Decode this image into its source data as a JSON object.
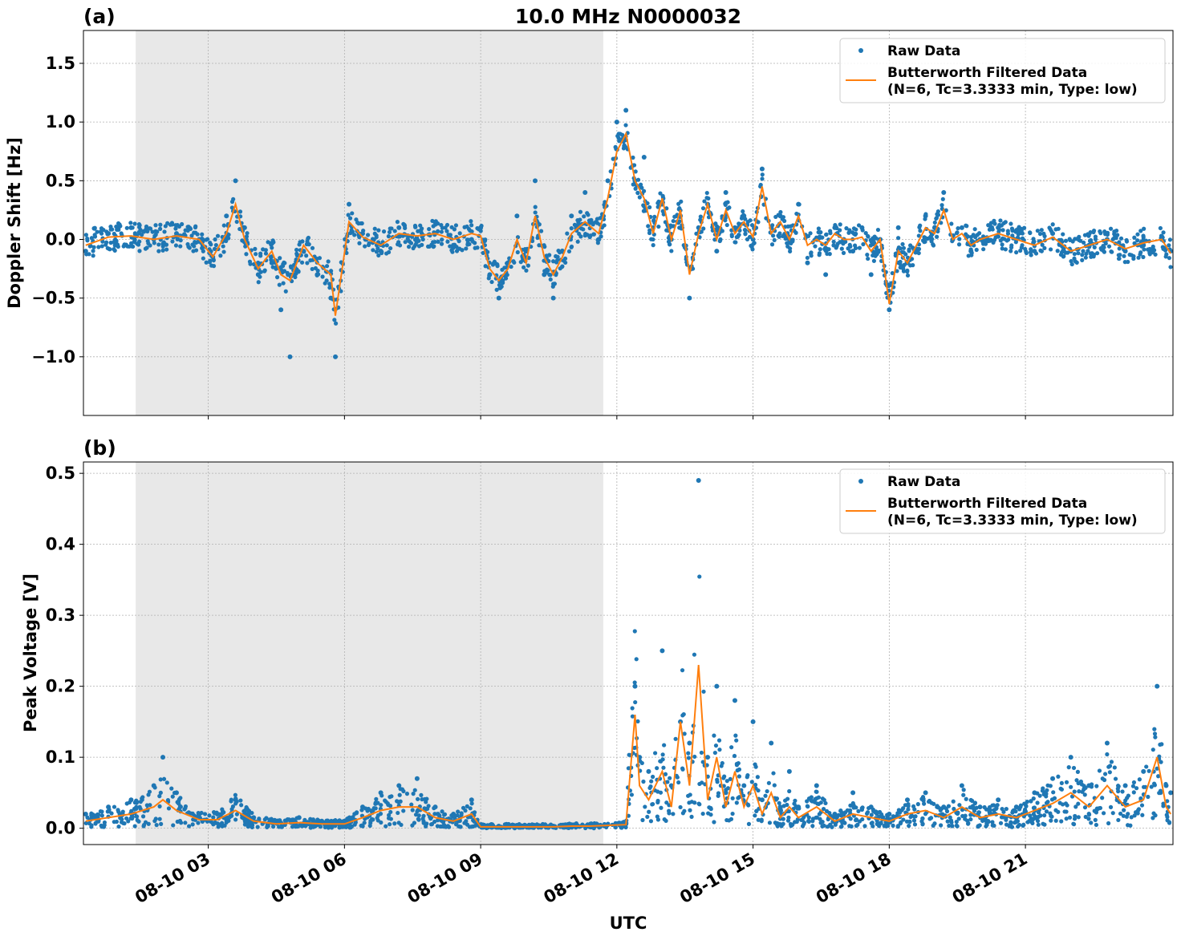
{
  "figure": {
    "title": "10.0 MHz N0000032",
    "xlabel": "UTC"
  },
  "colors": {
    "raw": "#1f77b4",
    "filtered": "#ff7f0e",
    "night_shade": "#e8e8e8",
    "grid": "#b0b0b0"
  },
  "chart_data": [
    {
      "type": "scatter",
      "panel_label": "(a)",
      "title": "10.0 MHz N0000032",
      "xlabel": "",
      "ylabel": "Doppler Shift [Hz]",
      "xlim": [
        0.25,
        24.25
      ],
      "ylim": [
        -1.5,
        1.78
      ],
      "x_unit": "hours UTC on 08-10",
      "yticks": [
        -1.0,
        -0.5,
        0.0,
        0.5,
        1.0,
        1.5
      ],
      "ytick_labels": [
        "−1.0",
        "−0.5",
        "0.0",
        "0.5",
        "1.0",
        "1.5"
      ],
      "shaded_region": [
        1.4,
        11.7
      ],
      "grid": true,
      "legend": {
        "placement": "top-right",
        "entries": [
          "Raw Data",
          "Butterworth Filtered Data",
          "(N=6, Tc=3.3333 min, Type: low)"
        ]
      },
      "series": [
        {
          "name": "Raw Data",
          "kind": "points",
          "x": [
            0.3,
            0.8,
            1.3,
            1.8,
            2.3,
            2.8,
            3.1,
            3.4,
            3.6,
            3.8,
            4.1,
            4.4,
            4.6,
            4.8,
            5.1,
            5.4,
            5.7,
            5.8,
            6.1,
            6.4,
            6.8,
            7.2,
            7.6,
            8.0,
            8.4,
            8.8,
            9.0,
            9.2,
            9.4,
            9.6,
            9.8,
            10.0,
            10.2,
            10.4,
            10.6,
            10.8,
            11.0,
            11.3,
            11.6,
            11.8,
            12.0,
            12.2,
            12.4,
            12.6,
            12.8,
            13.0,
            13.2,
            13.4,
            13.6,
            13.8,
            14.0,
            14.2,
            14.4,
            14.6,
            14.8,
            15.0,
            15.2,
            15.4,
            15.6,
            15.8,
            16.0,
            16.2,
            16.4,
            16.6,
            16.8,
            17.0,
            17.2,
            17.4,
            17.6,
            17.8,
            18.0,
            18.2,
            18.4,
            18.6,
            18.8,
            19.0,
            19.2,
            19.4,
            19.6,
            19.8,
            20.0,
            20.4,
            20.8,
            21.2,
            21.6,
            22.0,
            22.4,
            22.8,
            23.2,
            23.6,
            24.0,
            24.2
          ],
          "y": [
            -0.1,
            0.05,
            0.1,
            0.0,
            0.05,
            0.0,
            -0.15,
            0.2,
            0.5,
            0.1,
            -0.3,
            -0.2,
            -0.6,
            -1.0,
            -0.1,
            -0.3,
            -0.5,
            -1.0,
            0.3,
            0.05,
            -0.1,
            0.1,
            0.0,
            0.05,
            -0.05,
            0.0,
            0.1,
            -0.3,
            -0.5,
            -0.2,
            0.2,
            -0.1,
            0.5,
            -0.3,
            -0.5,
            -0.1,
            0.2,
            0.4,
            0.0,
            0.5,
            1.0,
            1.1,
            0.5,
            0.7,
            0.1,
            0.3,
            0.0,
            0.2,
            -0.5,
            0.1,
            0.3,
            -0.1,
            0.4,
            0.1,
            0.2,
            0.0,
            0.6,
            0.1,
            0.2,
            0.0,
            0.3,
            -0.2,
            0.0,
            -0.3,
            0.1,
            0.0,
            -0.1,
            0.1,
            -0.3,
            0.0,
            -0.6,
            0.1,
            -0.2,
            -0.1,
            0.2,
            0.1,
            0.4,
            0.0,
            0.1,
            -0.1,
            0.0,
            0.1,
            0.0,
            -0.1,
            0.05,
            -0.1,
            -0.05,
            0.0,
            -0.1,
            -0.05,
            0.0,
            -0.1
          ]
        },
        {
          "name": "Butterworth Filtered Data",
          "kind": "line",
          "x": [
            0.3,
            0.8,
            1.3,
            1.8,
            2.3,
            2.8,
            3.1,
            3.4,
            3.6,
            3.8,
            4.1,
            4.4,
            4.6,
            4.8,
            5.1,
            5.4,
            5.7,
            5.8,
            6.1,
            6.4,
            6.8,
            7.2,
            7.6,
            8.0,
            8.4,
            8.8,
            9.0,
            9.2,
            9.4,
            9.6,
            9.8,
            10.0,
            10.2,
            10.4,
            10.6,
            10.8,
            11.0,
            11.3,
            11.6,
            11.8,
            12.0,
            12.2,
            12.4,
            12.6,
            12.8,
            13.0,
            13.2,
            13.4,
            13.6,
            13.8,
            14.0,
            14.2,
            14.4,
            14.6,
            14.8,
            15.0,
            15.2,
            15.4,
            15.6,
            15.8,
            16.0,
            16.2,
            16.4,
            16.6,
            16.8,
            17.0,
            17.2,
            17.4,
            17.6,
            17.8,
            18.0,
            18.2,
            18.4,
            18.6,
            18.8,
            19.0,
            19.2,
            19.4,
            19.6,
            19.8,
            20.0,
            20.4,
            20.8,
            21.2,
            21.6,
            22.0,
            22.4,
            22.8,
            23.2,
            23.6,
            24.0,
            24.2
          ],
          "y": [
            -0.05,
            0.02,
            0.03,
            0.0,
            0.03,
            0.0,
            -0.15,
            0.05,
            0.3,
            0.0,
            -0.25,
            -0.1,
            -0.3,
            -0.35,
            -0.05,
            -0.2,
            -0.3,
            -0.65,
            0.15,
            0.02,
            -0.05,
            0.05,
            0.03,
            0.05,
            0.0,
            0.05,
            0.03,
            -0.25,
            -0.35,
            -0.25,
            0.0,
            -0.2,
            0.2,
            -0.15,
            -0.3,
            -0.15,
            0.05,
            0.15,
            0.05,
            0.35,
            0.75,
            0.9,
            0.5,
            0.35,
            0.05,
            0.35,
            0.0,
            0.25,
            -0.3,
            0.05,
            0.3,
            0.0,
            0.25,
            0.05,
            0.15,
            0.02,
            0.45,
            0.05,
            0.15,
            0.0,
            0.2,
            -0.05,
            0.0,
            -0.05,
            0.05,
            0.0,
            0.0,
            0.02,
            -0.1,
            0.0,
            -0.55,
            -0.1,
            -0.2,
            -0.05,
            0.1,
            0.05,
            0.25,
            0.0,
            0.05,
            -0.05,
            0.0,
            0.05,
            0.0,
            -0.05,
            0.02,
            -0.1,
            -0.05,
            0.0,
            -0.08,
            -0.03,
            0.0,
            -0.12
          ]
        }
      ]
    },
    {
      "type": "scatter",
      "panel_label": "(b)",
      "title": "",
      "xlabel": "UTC",
      "ylabel": "Peak Voltage [V]",
      "xlim": [
        0.25,
        24.25
      ],
      "ylim": [
        -0.023,
        0.516
      ],
      "x_unit": "hours UTC on 08-10",
      "yticks": [
        0.0,
        0.1,
        0.2,
        0.3,
        0.4,
        0.5
      ],
      "ytick_labels": [
        "0.0",
        "0.1",
        "0.2",
        "0.3",
        "0.4",
        "0.5"
      ],
      "xticks": [
        3,
        6,
        9,
        12,
        15,
        18,
        21
      ],
      "xtick_labels": [
        "08-10 03",
        "08-10 06",
        "08-10 09",
        "08-10 12",
        "08-10 15",
        "08-10 18",
        "08-10 21"
      ],
      "shaded_region": [
        1.4,
        11.7
      ],
      "grid": true,
      "legend": {
        "placement": "top-right",
        "entries": [
          "Raw Data",
          "Butterworth Filtered Data",
          "(N=6, Tc=3.3333 min, Type: low)"
        ]
      },
      "series": [
        {
          "name": "Raw Data",
          "kind": "points",
          "x": [
            0.3,
            0.8,
            1.3,
            1.8,
            2.0,
            2.3,
            2.8,
            3.2,
            3.6,
            4.0,
            4.5,
            5.0,
            5.5,
            6.0,
            6.4,
            6.8,
            7.2,
            7.6,
            8.0,
            8.4,
            8.8,
            9.0,
            9.4,
            9.8,
            10.2,
            10.6,
            11.0,
            11.4,
            11.8,
            12.2,
            12.4,
            12.5,
            12.7,
            13.0,
            13.2,
            13.4,
            13.6,
            13.8,
            14.0,
            14.2,
            14.4,
            14.6,
            14.8,
            15.0,
            15.2,
            15.4,
            15.6,
            15.8,
            16.0,
            16.4,
            16.8,
            17.2,
            17.6,
            18.0,
            18.4,
            18.8,
            19.2,
            19.6,
            20.0,
            20.4,
            20.8,
            21.2,
            21.6,
            22.0,
            22.4,
            22.8,
            23.2,
            23.6,
            23.9,
            24.1,
            24.2
          ],
          "y": [
            0.02,
            0.03,
            0.04,
            0.06,
            0.1,
            0.05,
            0.02,
            0.02,
            0.04,
            0.015,
            0.01,
            0.015,
            0.01,
            0.01,
            0.03,
            0.05,
            0.06,
            0.07,
            0.03,
            0.02,
            0.04,
            0.003,
            0.003,
            0.003,
            0.003,
            0.003,
            0.005,
            0.005,
            0.005,
            0.006,
            0.2,
            0.1,
            0.08,
            0.25,
            0.06,
            0.15,
            0.12,
            0.49,
            0.1,
            0.2,
            0.05,
            0.18,
            0.06,
            0.15,
            0.04,
            0.12,
            0.03,
            0.08,
            0.03,
            0.06,
            0.02,
            0.05,
            0.03,
            0.02,
            0.04,
            0.05,
            0.03,
            0.06,
            0.03,
            0.04,
            0.03,
            0.05,
            0.07,
            0.1,
            0.06,
            0.12,
            0.06,
            0.08,
            0.2,
            0.06,
            0.05
          ]
        },
        {
          "name": "Butterworth Filtered Data",
          "kind": "line",
          "x": [
            0.3,
            0.8,
            1.3,
            1.8,
            2.0,
            2.3,
            2.8,
            3.2,
            3.6,
            4.0,
            4.5,
            5.0,
            5.5,
            6.0,
            6.4,
            6.8,
            7.2,
            7.6,
            8.0,
            8.4,
            8.8,
            9.0,
            9.4,
            9.8,
            10.2,
            10.6,
            11.0,
            11.4,
            11.8,
            12.2,
            12.4,
            12.5,
            12.7,
            13.0,
            13.2,
            13.4,
            13.6,
            13.8,
            14.0,
            14.2,
            14.4,
            14.6,
            14.8,
            15.0,
            15.2,
            15.4,
            15.6,
            15.8,
            16.0,
            16.4,
            16.8,
            17.2,
            17.6,
            18.0,
            18.4,
            18.8,
            19.2,
            19.6,
            20.0,
            20.4,
            20.8,
            21.2,
            21.6,
            22.0,
            22.4,
            22.8,
            23.2,
            23.6,
            23.9,
            24.1,
            24.2
          ],
          "y": [
            0.01,
            0.015,
            0.02,
            0.03,
            0.04,
            0.025,
            0.012,
            0.012,
            0.025,
            0.01,
            0.006,
            0.008,
            0.006,
            0.006,
            0.015,
            0.025,
            0.03,
            0.03,
            0.015,
            0.01,
            0.02,
            0.002,
            0.002,
            0.002,
            0.002,
            0.002,
            0.003,
            0.003,
            0.004,
            0.005,
            0.16,
            0.06,
            0.04,
            0.08,
            0.03,
            0.15,
            0.06,
            0.23,
            0.04,
            0.1,
            0.03,
            0.08,
            0.03,
            0.06,
            0.02,
            0.05,
            0.015,
            0.03,
            0.015,
            0.03,
            0.01,
            0.02,
            0.015,
            0.01,
            0.02,
            0.025,
            0.015,
            0.03,
            0.015,
            0.02,
            0.015,
            0.025,
            0.035,
            0.05,
            0.03,
            0.06,
            0.03,
            0.04,
            0.1,
            0.03,
            0.02
          ]
        }
      ]
    }
  ]
}
